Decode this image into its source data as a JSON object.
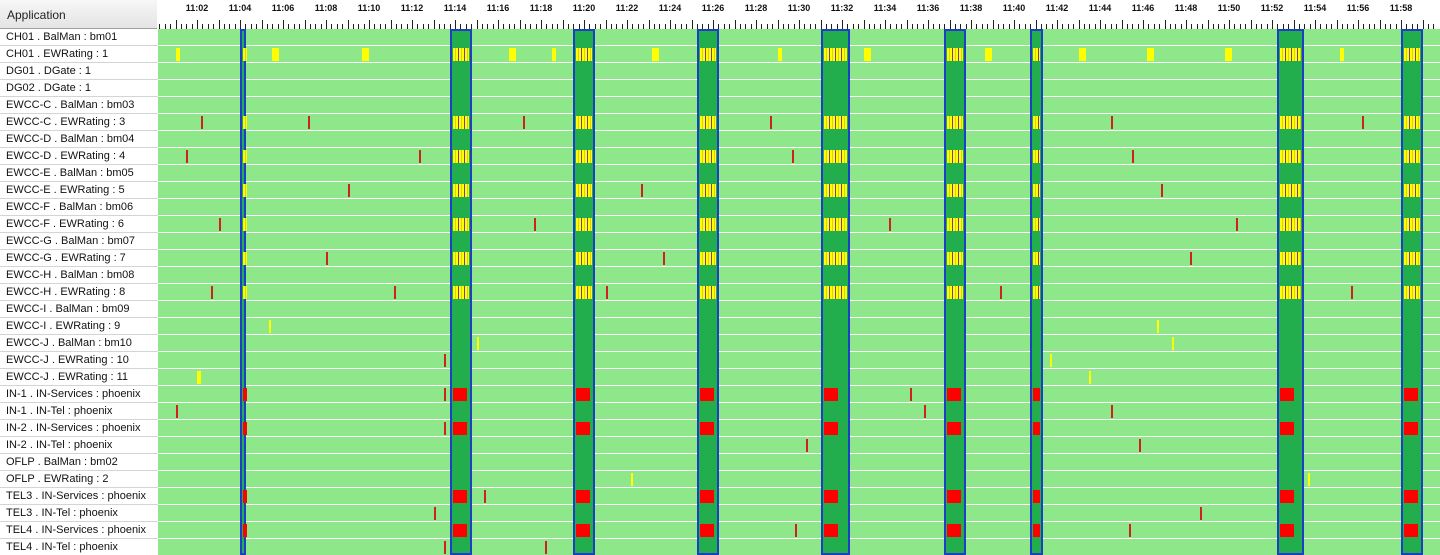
{
  "header": {
    "title": "Application"
  },
  "time_axis": {
    "start": "11:00:00",
    "end": "11:59:30",
    "labels": [
      "11:02",
      "11:04",
      "11:06",
      "11:08",
      "11:10",
      "11:12",
      "11:14",
      "11:16",
      "11:18",
      "11:20",
      "11:22",
      "11:24",
      "11:26",
      "11:28",
      "11:30",
      "11:32",
      "11:34",
      "11:36",
      "11:38",
      "11:40",
      "11:42",
      "11:44",
      "11:46",
      "11:48",
      "11:50",
      "11:52",
      "11:54",
      "11:56",
      "11:58"
    ]
  },
  "colors": {
    "normal": "#8ee88a",
    "window": "#22ae4c",
    "window_border": "#1d3fc8",
    "warning": "#ffff00",
    "minor": "#cc2222",
    "critical": "#ff0000",
    "other": "#9933cc"
  },
  "windows": [
    {
      "from": "11:04:00",
      "to": "11:04:15"
    },
    {
      "from": "11:13:45",
      "to": "11:14:45"
    },
    {
      "from": "11:19:30",
      "to": "11:20:30"
    },
    {
      "from": "11:25:15",
      "to": "11:26:15"
    },
    {
      "from": "11:31:00",
      "to": "11:32:20"
    },
    {
      "from": "11:36:45",
      "to": "11:37:45"
    },
    {
      "from": "11:40:45",
      "to": "11:41:20"
    },
    {
      "from": "11:52:15",
      "to": "11:53:30"
    },
    {
      "from": "11:58:00",
      "to": "11:59:00"
    }
  ],
  "rows": [
    {
      "label": "CH01 . BalMan : bm01"
    },
    {
      "label": "CH01 . EWRating : 1"
    },
    {
      "label": "DG01 . DGate : 1"
    },
    {
      "label": "DG02 . DGate : 1"
    },
    {
      "label": "EWCC-C . BalMan : bm03"
    },
    {
      "label": "EWCC-C . EWRating : 3"
    },
    {
      "label": "EWCC-D . BalMan : bm04"
    },
    {
      "label": "EWCC-D . EWRating : 4"
    },
    {
      "label": "EWCC-E . BalMan : bm05"
    },
    {
      "label": "EWCC-E . EWRating : 5"
    },
    {
      "label": "EWCC-F . BalMan : bm06"
    },
    {
      "label": "EWCC-F . EWRating : 6"
    },
    {
      "label": "EWCC-G . BalMan : bm07"
    },
    {
      "label": "EWCC-G . EWRating : 7"
    },
    {
      "label": "EWCC-H . BalMan : bm08"
    },
    {
      "label": "EWCC-H . EWRating : 8"
    },
    {
      "label": "EWCC-I . BalMan : bm09"
    },
    {
      "label": "EWCC-I . EWRating : 9"
    },
    {
      "label": "EWCC-J . BalMan : bm10"
    },
    {
      "label": "EWCC-J . EWRating : 10"
    },
    {
      "label": "EWCC-J . EWRating : 11"
    },
    {
      "label": "IN-1 . IN-Services : phoenix"
    },
    {
      "label": "IN-1 . IN-Tel : phoenix"
    },
    {
      "label": "IN-2 . IN-Services : phoenix"
    },
    {
      "label": "IN-2 . IN-Tel : phoenix"
    },
    {
      "label": "OFLP . BalMan : bm02"
    },
    {
      "label": "OFLP . EWRating : 2"
    },
    {
      "label": "TEL3 . IN-Services : phoenix"
    },
    {
      "label": "TEL3 . IN-Tel : phoenix"
    },
    {
      "label": "TEL4 . IN-Services : phoenix"
    },
    {
      "label": "TEL4 . IN-Tel : phoenix"
    }
  ],
  "events": [
    {
      "row": 1,
      "from": "11:00:05",
      "to": "11:00:10",
      "level": "warning"
    },
    {
      "row": 1,
      "from": "11:01:00",
      "to": "11:01:10",
      "level": "warning"
    },
    {
      "row": 1,
      "from": "11:05:30",
      "to": "11:05:50",
      "level": "warning"
    },
    {
      "row": 1,
      "from": "11:09:40",
      "to": "11:10:00",
      "level": "warning"
    },
    {
      "row": 1,
      "from": "11:16:30",
      "to": "11:16:50",
      "level": "warning"
    },
    {
      "row": 1,
      "from": "11:18:30",
      "to": "11:18:40",
      "level": "warning"
    },
    {
      "row": 1,
      "from": "11:23:10",
      "to": "11:23:30",
      "level": "warning"
    },
    {
      "row": 1,
      "from": "11:29:00",
      "to": "11:29:10",
      "level": "warning"
    },
    {
      "row": 1,
      "from": "11:33:00",
      "to": "11:33:20",
      "level": "warning"
    },
    {
      "row": 1,
      "from": "11:38:40",
      "to": "11:39:00",
      "level": "warning"
    },
    {
      "row": 1,
      "from": "11:43:00",
      "to": "11:43:20",
      "level": "warning"
    },
    {
      "row": 1,
      "from": "11:46:10",
      "to": "11:46:30",
      "level": "warning"
    },
    {
      "row": 1,
      "from": "11:49:50",
      "to": "11:50:10",
      "level": "warning"
    },
    {
      "row": 1,
      "from": "11:55:10",
      "to": "11:55:20",
      "level": "warning"
    },
    {
      "row": 5,
      "from": "11:02:10",
      "to": "11:02:15",
      "level": "minor"
    },
    {
      "row": 5,
      "from": "11:07:10",
      "to": "11:07:15",
      "level": "minor"
    },
    {
      "row": 5,
      "from": "11:17:10",
      "to": "11:17:15",
      "level": "minor"
    },
    {
      "row": 5,
      "from": "11:28:40",
      "to": "11:28:45",
      "level": "minor"
    },
    {
      "row": 5,
      "from": "11:44:30",
      "to": "11:44:35",
      "level": "minor"
    },
    {
      "row": 5,
      "from": "11:56:10",
      "to": "11:56:15",
      "level": "minor"
    },
    {
      "row": 7,
      "from": "11:01:30",
      "to": "11:01:35",
      "level": "minor"
    },
    {
      "row": 7,
      "from": "11:12:20",
      "to": "11:12:25",
      "level": "minor"
    },
    {
      "row": 7,
      "from": "11:29:40",
      "to": "11:29:45",
      "level": "minor"
    },
    {
      "row": 7,
      "from": "11:45:30",
      "to": "11:45:35",
      "level": "minor"
    },
    {
      "row": 9,
      "from": "11:09:00",
      "to": "11:09:05",
      "level": "minor"
    },
    {
      "row": 9,
      "from": "11:22:40",
      "to": "11:22:45",
      "level": "minor"
    },
    {
      "row": 9,
      "from": "11:46:50",
      "to": "11:46:55",
      "level": "minor"
    },
    {
      "row": 11,
      "from": "11:03:00",
      "to": "11:03:05",
      "level": "minor"
    },
    {
      "row": 11,
      "from": "11:17:40",
      "to": "11:17:45",
      "level": "minor"
    },
    {
      "row": 11,
      "from": "11:34:10",
      "to": "11:34:15",
      "level": "minor"
    },
    {
      "row": 11,
      "from": "11:50:20",
      "to": "11:50:25",
      "level": "minor"
    },
    {
      "row": 13,
      "from": "11:08:00",
      "to": "11:08:05",
      "level": "minor"
    },
    {
      "row": 13,
      "from": "11:23:40",
      "to": "11:23:45",
      "level": "minor"
    },
    {
      "row": 13,
      "from": "11:48:10",
      "to": "11:48:15",
      "level": "minor"
    },
    {
      "row": 15,
      "from": "11:02:40",
      "to": "11:02:45",
      "level": "minor"
    },
    {
      "row": 15,
      "from": "11:11:10",
      "to": "11:11:15",
      "level": "minor"
    },
    {
      "row": 15,
      "from": "11:21:00",
      "to": "11:21:05",
      "level": "minor"
    },
    {
      "row": 15,
      "from": "11:39:20",
      "to": "11:39:25",
      "level": "minor"
    },
    {
      "row": 15,
      "from": "11:55:40",
      "to": "11:55:45",
      "level": "minor"
    },
    {
      "row": 17,
      "from": "11:05:20",
      "to": "11:05:25",
      "level": "warning"
    },
    {
      "row": 17,
      "from": "11:46:40",
      "to": "11:46:45",
      "level": "warning"
    },
    {
      "row": 18,
      "from": "11:15:00",
      "to": "11:15:05",
      "level": "warning"
    },
    {
      "row": 18,
      "from": "11:47:20",
      "to": "11:47:25",
      "level": "warning"
    },
    {
      "row": 19,
      "from": "11:13:30",
      "to": "11:13:35",
      "level": "minor"
    },
    {
      "row": 19,
      "from": "11:41:40",
      "to": "11:41:45",
      "level": "warning"
    },
    {
      "row": 20,
      "from": "11:02:00",
      "to": "11:02:10",
      "level": "warning"
    },
    {
      "row": 20,
      "from": "11:43:30",
      "to": "11:43:35",
      "level": "warning"
    },
    {
      "row": 21,
      "from": "11:13:30",
      "to": "11:13:35",
      "level": "minor"
    },
    {
      "row": 21,
      "from": "11:35:10",
      "to": "11:35:15",
      "level": "minor"
    },
    {
      "row": 22,
      "from": "11:01:00",
      "to": "11:01:05",
      "level": "minor"
    },
    {
      "row": 22,
      "from": "11:35:50",
      "to": "11:35:55",
      "level": "minor"
    },
    {
      "row": 22,
      "from": "11:44:30",
      "to": "11:44:35",
      "level": "minor"
    },
    {
      "row": 23,
      "from": "11:13:30",
      "to": "11:13:35",
      "level": "minor"
    },
    {
      "row": 24,
      "from": "11:30:20",
      "to": "11:30:25",
      "level": "minor"
    },
    {
      "row": 24,
      "from": "11:45:50",
      "to": "11:45:55",
      "level": "minor"
    },
    {
      "row": 26,
      "from": "11:22:10",
      "to": "11:22:15",
      "level": "warning"
    },
    {
      "row": 26,
      "from": "11:53:40",
      "to": "11:53:45",
      "level": "warning"
    },
    {
      "row": 27,
      "from": "11:15:20",
      "to": "11:15:25",
      "level": "minor"
    },
    {
      "row": 28,
      "from": "11:13:00",
      "to": "11:13:05",
      "level": "minor"
    },
    {
      "row": 28,
      "from": "11:48:40",
      "to": "11:48:45",
      "level": "minor"
    },
    {
      "row": 29,
      "from": "11:29:50",
      "to": "11:29:55",
      "level": "minor"
    },
    {
      "row": 29,
      "from": "11:45:20",
      "to": "11:45:25",
      "level": "minor"
    },
    {
      "row": 30,
      "from": "11:13:30",
      "to": "11:13:35",
      "level": "minor"
    },
    {
      "row": 30,
      "from": "11:18:10",
      "to": "11:18:15",
      "level": "minor"
    }
  ],
  "window_fills": [
    {
      "rows": [
        1,
        5,
        7,
        9,
        11,
        13,
        15
      ],
      "level": "warning"
    },
    {
      "rows": [
        21,
        23,
        27,
        29
      ],
      "level": "critical"
    }
  ]
}
